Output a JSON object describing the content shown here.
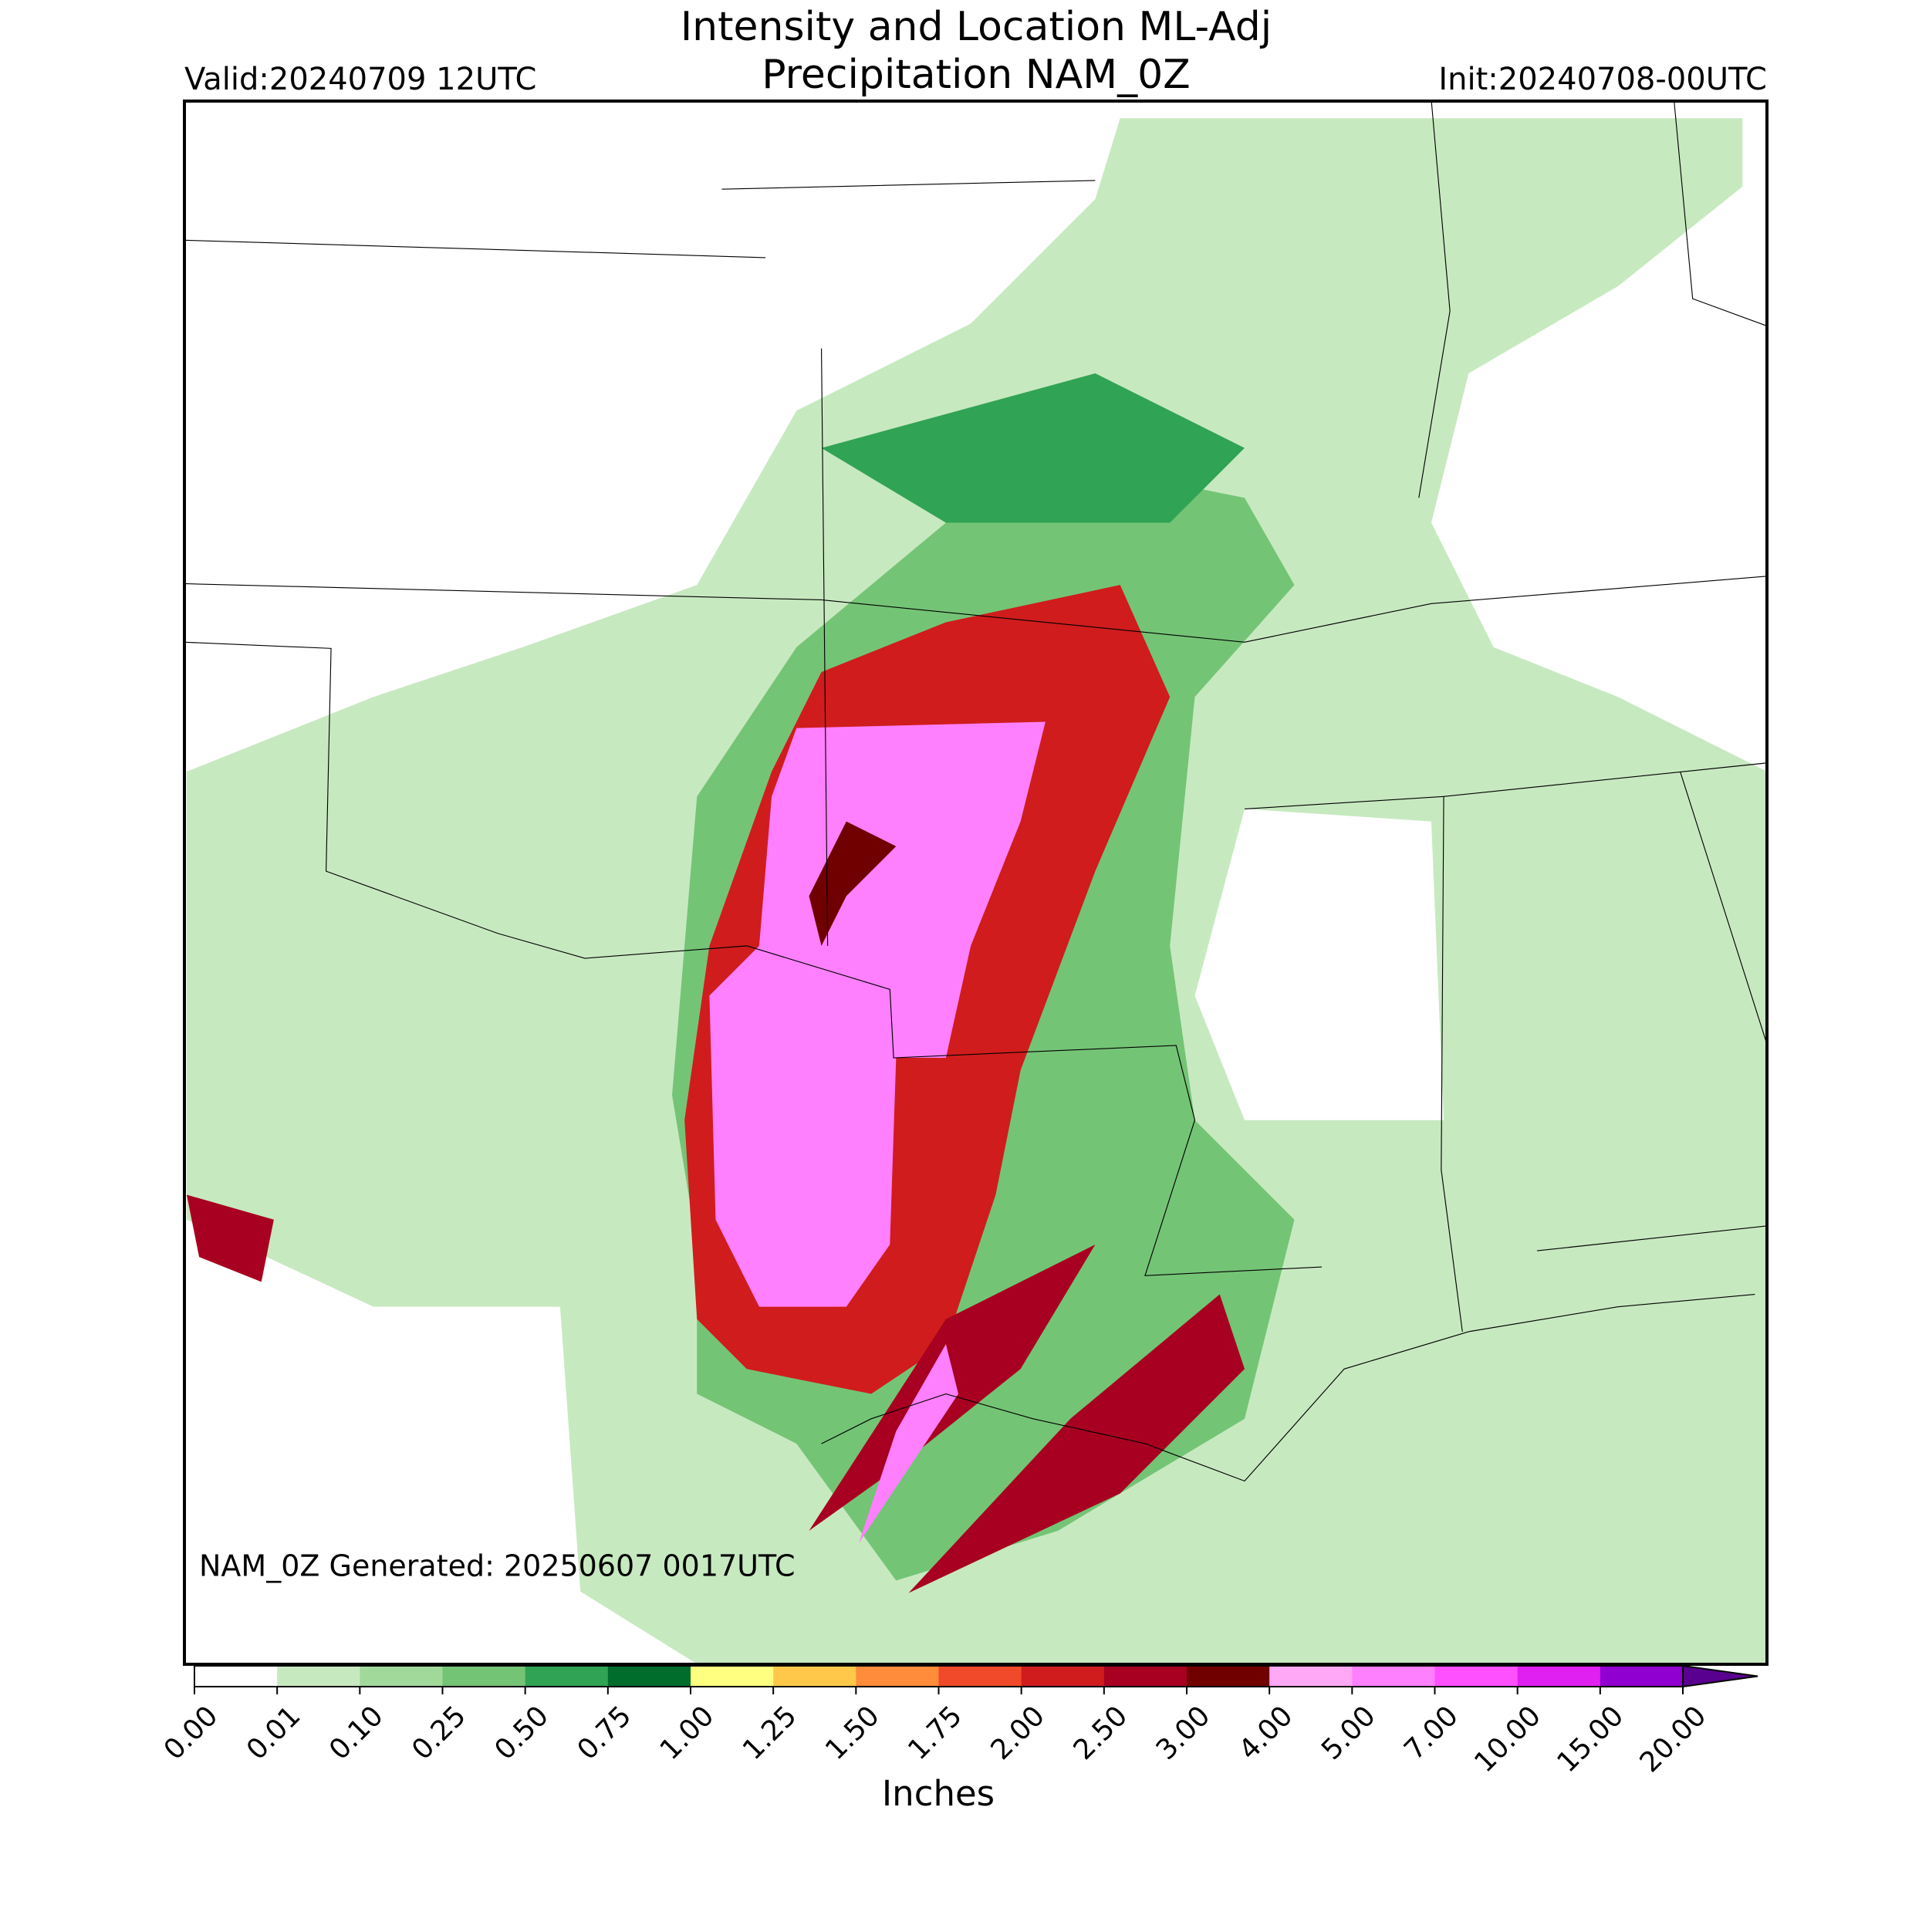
{
  "header": {
    "title_line1": "Intensity and Location ML-Adj",
    "title_line2": "Precipitation NAM_0Z",
    "valid": "Valid:20240709 12UTC",
    "init": "Init:20240708-00UTC"
  },
  "map": {
    "annotation": "NAM_0Z Generated: 20250607 0017UTC"
  },
  "colorbar": {
    "label": "Inches",
    "ticks": [
      {
        "value": 0,
        "label": "0.00"
      },
      {
        "value": 0.01,
        "label": "0.01"
      },
      {
        "value": 0.1,
        "label": "0.10"
      },
      {
        "value": 0.25,
        "label": "0.25"
      },
      {
        "value": 0.5,
        "label": "0.50"
      },
      {
        "value": 0.75,
        "label": "0.75"
      },
      {
        "value": 1,
        "label": "1.00"
      },
      {
        "value": 1.25,
        "label": "1.25"
      },
      {
        "value": 1.5,
        "label": "1.50"
      },
      {
        "value": 1.75,
        "label": "1.75"
      },
      {
        "value": 2,
        "label": "2.00"
      },
      {
        "value": 2.5,
        "label": "2.50"
      },
      {
        "value": 3,
        "label": "3.00"
      },
      {
        "value": 4,
        "label": "4.00"
      },
      {
        "value": 5,
        "label": "5.00"
      },
      {
        "value": 7,
        "label": "7.00"
      },
      {
        "value": 10,
        "label": "10.00"
      },
      {
        "value": 15,
        "label": "15.00"
      },
      {
        "value": 20,
        "label": "20.00"
      }
    ],
    "colors": [
      "#ffffff",
      "#c7e9c0",
      "#a1d99b",
      "#74c476",
      "#31a354",
      "#006d2c",
      "#ffff80",
      "#ffc84a",
      "#ff8c3a",
      "#f04a2a",
      "#d01c1c",
      "#a80020",
      "#700000",
      "#ffa8f5",
      "#ff80ff",
      "#ff50ff",
      "#e020f0",
      "#9000d0"
    ],
    "extend_color": "#5a0090"
  }
}
